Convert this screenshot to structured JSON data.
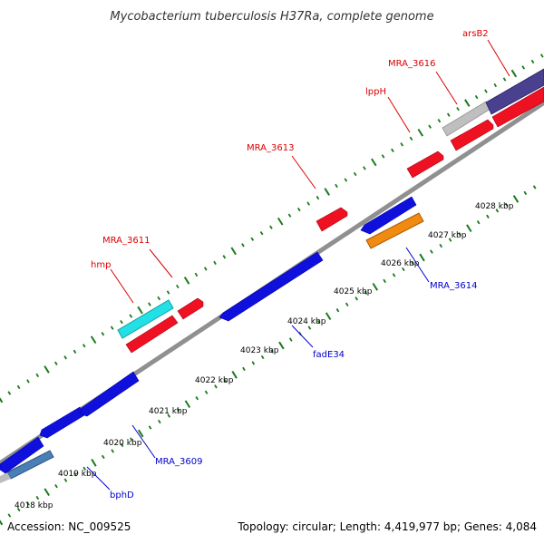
{
  "title": "Mycobacterium tuberculosis H37Ra, complete genome",
  "footer": {
    "accession": "Accession: NC_009525",
    "summary": "Topology: circular; Length: 4,419,977 bp; Genes: 4,084"
  },
  "colors": {
    "backbone": "#808080",
    "tick": "#1a7a1a",
    "label_forward": "#dd0000",
    "label_reverse": "#0000cc"
  },
  "ticks": [
    "4018 kbp",
    "4019 kbp",
    "4020 kbp",
    "4021 kbp",
    "4022 kbp",
    "4023 kbp",
    "4024 kbp",
    "4025 kbp",
    "4026 kbp",
    "4027 kbp",
    "4028 kbp"
  ],
  "genes": [
    {
      "name": "bphD",
      "strand": "reverse",
      "color": "#4a7fb5",
      "shape": "box",
      "labeled": true
    },
    {
      "name": "",
      "strand": "reverse",
      "color": "#1010dd",
      "shape": "arrow",
      "labeled": false
    },
    {
      "name": "",
      "strand": "reverse",
      "color": "#1010dd",
      "shape": "arrow",
      "labeled": false
    },
    {
      "name": "MRA_3609",
      "strand": "reverse",
      "color": "#1010dd",
      "shape": "arrow",
      "labeled": true
    },
    {
      "name": "hmp",
      "strand": "forward",
      "color": "#22e0e6",
      "shape": "box",
      "labeled": true
    },
    {
      "name": "",
      "strand": "forward",
      "color": "#ee1122",
      "shape": "arrow",
      "labeled": false
    },
    {
      "name": "MRA_3611",
      "strand": "forward",
      "color": "#ee1122",
      "shape": "arrow",
      "labeled": true
    },
    {
      "name": "fadE34",
      "strand": "reverse",
      "color": "#1010dd",
      "shape": "arrow",
      "labeled": true
    },
    {
      "name": "MRA_3613",
      "strand": "forward",
      "color": "#ee1122",
      "shape": "arrow",
      "labeled": true
    },
    {
      "name": "MRA_3614",
      "strand": "reverse",
      "color": "#f08a10",
      "shape": "box",
      "labeled": true
    },
    {
      "name": "",
      "strand": "reverse",
      "color": "#1010dd",
      "shape": "arrow",
      "labeled": false
    },
    {
      "name": "lppH",
      "strand": "forward",
      "color": "#ee1122",
      "shape": "arrow",
      "labeled": true
    },
    {
      "name": "",
      "strand": "forward",
      "color": "#ee1122",
      "shape": "arrow",
      "labeled": false
    },
    {
      "name": "MRA_3616",
      "strand": "forward",
      "color": "#bfbfbf",
      "shape": "box",
      "labeled": true
    },
    {
      "name": "",
      "strand": "forward",
      "color": "#ee1122",
      "shape": "arrow",
      "labeled": false
    },
    {
      "name": "arsB2",
      "strand": "forward",
      "color": "#4a4090",
      "shape": "box",
      "labeled": true
    }
  ]
}
